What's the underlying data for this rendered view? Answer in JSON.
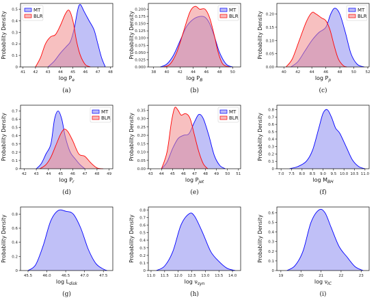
{
  "colors": {
    "mt": "#0000ff",
    "blr": "#ff0000",
    "mt_fill": "#8c8cf0",
    "blr_fill": "#f08c8c"
  },
  "chart_data": [
    {
      "id": "a",
      "type": "area",
      "caption": "(a)",
      "ylabel": "Probability Density",
      "xlabel": {
        "base": "log P",
        "sub": "e"
      },
      "xlim": [
        40.8,
        48.2
      ],
      "ylim": [
        0,
        0.55
      ],
      "xticks": [
        41,
        42,
        43,
        44,
        45,
        46,
        47,
        48
      ],
      "yticks": [
        0.0,
        0.1,
        0.2,
        0.3,
        0.4,
        0.5
      ],
      "legend": "top-left",
      "series": [
        {
          "name": "MT",
          "color": "mt",
          "points": [
            [
              43.0,
              0
            ],
            [
              43.5,
              0.05
            ],
            [
              44.0,
              0.12
            ],
            [
              44.5,
              0.18
            ],
            [
              44.8,
              0.22
            ],
            [
              45.1,
              0.33
            ],
            [
              45.4,
              0.5
            ],
            [
              45.6,
              0.54
            ],
            [
              45.9,
              0.48
            ],
            [
              46.3,
              0.4
            ],
            [
              46.7,
              0.32
            ],
            [
              47.0,
              0.2
            ],
            [
              47.3,
              0.08
            ],
            [
              47.6,
              0
            ]
          ]
        },
        {
          "name": "BLR",
          "color": "blr",
          "points": [
            [
              42.0,
              0
            ],
            [
              42.4,
              0.08
            ],
            [
              42.8,
              0.2
            ],
            [
              43.2,
              0.26
            ],
            [
              43.6,
              0.28
            ],
            [
              44.0,
              0.36
            ],
            [
              44.4,
              0.46
            ],
            [
              44.7,
              0.49
            ],
            [
              45.0,
              0.4
            ],
            [
              45.3,
              0.22
            ],
            [
              45.6,
              0.1
            ],
            [
              46.0,
              0.02
            ],
            [
              46.4,
              0
            ]
          ]
        }
      ]
    },
    {
      "id": "b",
      "type": "area",
      "caption": "(b)",
      "ylabel": "Probability Density",
      "xlabel": {
        "base": "log P",
        "sub": "B"
      },
      "xlim": [
        37.2,
        51.2
      ],
      "ylim": [
        0,
        0.22
      ],
      "xticks": [
        38,
        40,
        42,
        44,
        46,
        48,
        50
      ],
      "yticks": [
        0.0,
        0.025,
        0.05,
        0.075,
        0.1,
        0.125,
        0.15,
        0.175,
        0.2
      ],
      "ytick_labels": [
        "0.000",
        "0.025",
        "0.050",
        "0.075",
        "0.100",
        "0.125",
        "0.150",
        "0.175",
        "0.200"
      ],
      "legend": "top-right",
      "series": [
        {
          "name": "MT",
          "color": "mt",
          "points": [
            [
              39.0,
              0
            ],
            [
              40.0,
              0.01
            ],
            [
              41.0,
              0.04
            ],
            [
              42.0,
              0.09
            ],
            [
              43.0,
              0.14
            ],
            [
              44.0,
              0.165
            ],
            [
              45.0,
              0.175
            ],
            [
              45.8,
              0.172
            ],
            [
              46.5,
              0.15
            ],
            [
              47.3,
              0.1
            ],
            [
              48.0,
              0.05
            ],
            [
              49.0,
              0.01
            ],
            [
              50.0,
              0
            ]
          ]
        },
        {
          "name": "BLR",
          "color": "blr",
          "points": [
            [
              39.5,
              0
            ],
            [
              40.5,
              0.01
            ],
            [
              41.5,
              0.05
            ],
            [
              42.5,
              0.12
            ],
            [
              43.5,
              0.19
            ],
            [
              44.3,
              0.21
            ],
            [
              45.0,
              0.2
            ],
            [
              45.8,
              0.2
            ],
            [
              46.5,
              0.17
            ],
            [
              47.2,
              0.11
            ],
            [
              47.8,
              0.05
            ],
            [
              48.5,
              0.01
            ],
            [
              49.5,
              0
            ]
          ]
        }
      ]
    },
    {
      "id": "c",
      "type": "area",
      "caption": "(c)",
      "ylabel": "Probability Density",
      "xlabel": {
        "base": "log P",
        "sub": "p"
      },
      "xlim": [
        39.0,
        52.2
      ],
      "ylim": [
        0,
        0.24
      ],
      "xticks": [
        40,
        42,
        44,
        46,
        48,
        50,
        52
      ],
      "yticks": [
        0.0,
        0.05,
        0.1,
        0.15,
        0.2
      ],
      "ytick_labels": [
        "0.00",
        "0.05",
        "0.10",
        "0.15",
        "0.20"
      ],
      "legend": "top-right",
      "series": [
        {
          "name": "MT",
          "color": "mt",
          "points": [
            [
              41.0,
              0
            ],
            [
              42.0,
              0.02
            ],
            [
              43.0,
              0.06
            ],
            [
              44.0,
              0.1
            ],
            [
              45.0,
              0.13
            ],
            [
              46.0,
              0.15
            ],
            [
              46.7,
              0.2
            ],
            [
              47.3,
              0.222
            ],
            [
              48.0,
              0.2
            ],
            [
              48.8,
              0.13
            ],
            [
              49.6,
              0.05
            ],
            [
              50.5,
              0.01
            ],
            [
              51.5,
              0
            ]
          ]
        },
        {
          "name": "BLR",
          "color": "blr",
          "points": [
            [
              40.3,
              0
            ],
            [
              41.2,
              0.03
            ],
            [
              42.2,
              0.1
            ],
            [
              43.2,
              0.17
            ],
            [
              44.0,
              0.205
            ],
            [
              44.6,
              0.2
            ],
            [
              45.4,
              0.185
            ],
            [
              46.0,
              0.175
            ],
            [
              46.6,
              0.14
            ],
            [
              47.2,
              0.08
            ],
            [
              47.8,
              0.03
            ],
            [
              48.5,
              0.005
            ],
            [
              49.0,
              0
            ]
          ]
        }
      ]
    },
    {
      "id": "d",
      "type": "area",
      "caption": "(d)",
      "ylabel": "Probability Density",
      "xlabel": {
        "base": "log P",
        "sub": "r"
      },
      "xlim": [
        41.7,
        49.3
      ],
      "ylim": [
        0,
        0.77
      ],
      "xticks": [
        42,
        43,
        44,
        45,
        46,
        47,
        48,
        49
      ],
      "yticks": [
        0.0,
        0.1,
        0.2,
        0.3,
        0.4,
        0.5,
        0.6,
        0.7
      ],
      "legend": "top-right",
      "series": [
        {
          "name": "MT",
          "color": "mt",
          "points": [
            [
              43.0,
              0
            ],
            [
              43.4,
              0.06
            ],
            [
              43.8,
              0.18
            ],
            [
              44.2,
              0.3
            ],
            [
              44.5,
              0.6
            ],
            [
              44.8,
              0.7
            ],
            [
              45.1,
              0.6
            ],
            [
              45.4,
              0.38
            ],
            [
              45.8,
              0.2
            ],
            [
              46.2,
              0.12
            ],
            [
              46.6,
              0.05
            ],
            [
              47.0,
              0
            ]
          ]
        },
        {
          "name": "BLR",
          "color": "blr",
          "points": [
            [
              43.3,
              0
            ],
            [
              43.8,
              0.05
            ],
            [
              44.2,
              0.14
            ],
            [
              44.6,
              0.28
            ],
            [
              45.0,
              0.42
            ],
            [
              45.3,
              0.48
            ],
            [
              45.6,
              0.45
            ],
            [
              46.0,
              0.34
            ],
            [
              46.5,
              0.18
            ],
            [
              47.0,
              0.15
            ],
            [
              47.5,
              0.07
            ],
            [
              48.0,
              0.01
            ],
            [
              48.5,
              0
            ]
          ]
        }
      ]
    },
    {
      "id": "e",
      "type": "area",
      "caption": "(e)",
      "ylabel": "Probability Density",
      "xlabel": {
        "base": "log P",
        "sub": "jet"
      },
      "xlim": [
        42.8,
        51.2
      ],
      "ylim": [
        0,
        0.38
      ],
      "xticks": [
        43,
        44,
        45,
        46,
        47,
        48,
        49,
        50,
        51
      ],
      "yticks": [
        0.0,
        0.05,
        0.1,
        0.15,
        0.2,
        0.25,
        0.3,
        0.35
      ],
      "ytick_labels": [
        "0.00",
        "0.05",
        "0.10",
        "0.15",
        "0.20",
        "0.25",
        "0.30",
        "0.35"
      ],
      "legend": "top-right",
      "series": [
        {
          "name": "MT",
          "color": "mt",
          "points": [
            [
              44.0,
              0
            ],
            [
              44.5,
              0.04
            ],
            [
              45.0,
              0.12
            ],
            [
              45.5,
              0.18
            ],
            [
              46.0,
              0.2
            ],
            [
              46.5,
              0.21
            ],
            [
              47.0,
              0.28
            ],
            [
              47.4,
              0.325
            ],
            [
              47.8,
              0.3
            ],
            [
              48.3,
              0.2
            ],
            [
              48.8,
              0.08
            ],
            [
              49.3,
              0.02
            ],
            [
              49.8,
              0
            ]
          ]
        },
        {
          "name": "BLR",
          "color": "blr",
          "points": [
            [
              44.0,
              0
            ],
            [
              44.5,
              0.1
            ],
            [
              44.9,
              0.28
            ],
            [
              45.2,
              0.365
            ],
            [
              45.5,
              0.35
            ],
            [
              45.8,
              0.32
            ],
            [
              46.2,
              0.33
            ],
            [
              46.6,
              0.3
            ],
            [
              47.0,
              0.2
            ],
            [
              47.4,
              0.1
            ],
            [
              47.8,
              0.03
            ],
            [
              48.2,
              0
            ]
          ]
        }
      ]
    },
    {
      "id": "f",
      "type": "area",
      "caption": "(f)",
      "ylabel": "Probability Density",
      "xlabel": {
        "base": "log M",
        "sub": "BH"
      },
      "xlim": [
        6.8,
        11.2
      ],
      "ylim": [
        0,
        0.86
      ],
      "xticks": [
        7.0,
        7.5,
        8.0,
        8.5,
        9.0,
        9.5,
        10.0,
        10.5,
        11.0
      ],
      "xtick_labels": [
        "7.0",
        "7.5",
        "8.0",
        "8.5",
        "9.0",
        "9.5",
        "10.0",
        "10.5",
        "11.0"
      ],
      "yticks": [
        0.0,
        0.1,
        0.2,
        0.3,
        0.4,
        0.5,
        0.6,
        0.7,
        0.8
      ],
      "series": [
        {
          "color": "mt",
          "points": [
            [
              7.4,
              0
            ],
            [
              7.8,
              0.03
            ],
            [
              8.2,
              0.1
            ],
            [
              8.5,
              0.25
            ],
            [
              8.8,
              0.55
            ],
            [
              9.0,
              0.75
            ],
            [
              9.2,
              0.8
            ],
            [
              9.4,
              0.7
            ],
            [
              9.6,
              0.55
            ],
            [
              9.8,
              0.48
            ],
            [
              10.1,
              0.3
            ],
            [
              10.4,
              0.12
            ],
            [
              10.7,
              0.03
            ],
            [
              11.0,
              0
            ]
          ]
        }
      ]
    },
    {
      "id": "g",
      "type": "area",
      "caption": "(g)",
      "ylabel": "Probability Density",
      "xlabel": {
        "base": "log L",
        "sub": "disk"
      },
      "xlim": [
        45.3,
        47.75
      ],
      "ylim": [
        0,
        0.9
      ],
      "xticks": [
        45.5,
        46.0,
        46.5,
        47.0,
        47.5
      ],
      "xtick_labels": [
        "45.5",
        "46.0",
        "46.5",
        "47.0",
        "47.5"
      ],
      "yticks": [
        0.0,
        0.2,
        0.4,
        0.6,
        0.8
      ],
      "series": [
        {
          "color": "mt",
          "points": [
            [
              45.5,
              0
            ],
            [
              45.7,
              0.08
            ],
            [
              45.9,
              0.35
            ],
            [
              46.1,
              0.7
            ],
            [
              46.3,
              0.85
            ],
            [
              46.5,
              0.84
            ],
            [
              46.7,
              0.8
            ],
            [
              46.9,
              0.6
            ],
            [
              47.1,
              0.3
            ],
            [
              47.3,
              0.1
            ],
            [
              47.5,
              0.02
            ],
            [
              47.6,
              0
            ]
          ]
        }
      ]
    },
    {
      "id": "h",
      "type": "area",
      "caption": "(h)",
      "ylabel": "Probability Density",
      "xlabel": {
        "base": "log ν",
        "sub": "syn"
      },
      "xlim": [
        10.9,
        14.3
      ],
      "ylim": [
        0,
        0.84
      ],
      "xticks": [
        11.0,
        11.5,
        12.0,
        12.5,
        13.0,
        13.5,
        14.0
      ],
      "xtick_labels": [
        "11.0",
        "11.5",
        "12.0",
        "12.5",
        "13.0",
        "13.5",
        "14.0"
      ],
      "yticks": [
        0.0,
        0.1,
        0.2,
        0.3,
        0.4,
        0.5,
        0.6,
        0.7,
        0.8
      ],
      "series": [
        {
          "color": "mt",
          "points": [
            [
              11.2,
              0
            ],
            [
              11.5,
              0.06
            ],
            [
              11.8,
              0.25
            ],
            [
              12.1,
              0.6
            ],
            [
              12.4,
              0.75
            ],
            [
              12.6,
              0.72
            ],
            [
              12.9,
              0.5
            ],
            [
              13.2,
              0.25
            ],
            [
              13.5,
              0.12
            ],
            [
              13.8,
              0.03
            ],
            [
              14.1,
              0
            ]
          ]
        }
      ]
    },
    {
      "id": "i",
      "type": "area",
      "caption": "(i)",
      "ylabel": "Probability Density",
      "xlabel": {
        "base": "log ν",
        "sub": "IC"
      },
      "xlim": [
        18.8,
        23.4
      ],
      "ylim": [
        0,
        0.66
      ],
      "xticks": [
        19,
        20,
        21,
        22,
        23
      ],
      "yticks": [
        0.0,
        0.1,
        0.2,
        0.3,
        0.4,
        0.5,
        0.6
      ],
      "series": [
        {
          "color": "mt",
          "points": [
            [
              19.3,
              0
            ],
            [
              19.7,
              0.05
            ],
            [
              20.1,
              0.2
            ],
            [
              20.5,
              0.5
            ],
            [
              20.9,
              0.63
            ],
            [
              21.2,
              0.6
            ],
            [
              21.5,
              0.45
            ],
            [
              21.9,
              0.25
            ],
            [
              22.3,
              0.14
            ],
            [
              22.7,
              0.04
            ],
            [
              23.1,
              0
            ]
          ]
        }
      ]
    }
  ]
}
